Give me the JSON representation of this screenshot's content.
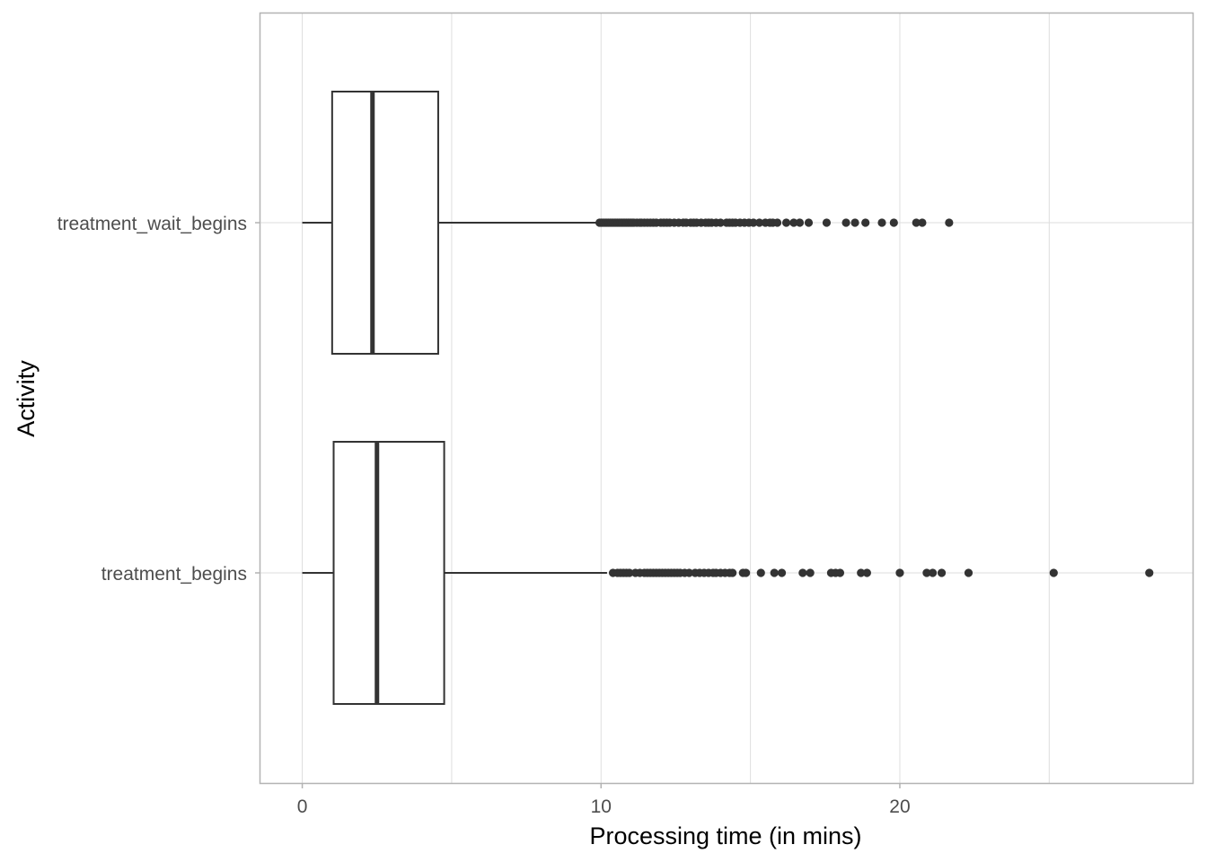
{
  "chart_data": {
    "type": "boxplot",
    "orientation": "horizontal",
    "title": "",
    "xlabel": "Processing time (in mins)",
    "ylabel": "Activity",
    "xlim": [
      -1.4,
      29.8
    ],
    "x_ticks": [
      0,
      10,
      20
    ],
    "x_minor_ticks": [
      5,
      15,
      25
    ],
    "grid": true,
    "colors": {
      "box_stroke": "#333333",
      "outlier": "#333333",
      "grid": "#dedede",
      "panel_border": "#b3b3b3"
    },
    "categories": [
      "treatment_wait_begins",
      "treatment_begins"
    ],
    "series": [
      {
        "category": "treatment_wait_begins",
        "whisker_low": 0,
        "q1": 1.0,
        "median": 2.35,
        "q3": 4.55,
        "whisker_high": 9.9,
        "outliers": [
          9.95,
          10.0,
          10.05,
          10.1,
          10.15,
          10.2,
          10.25,
          10.3,
          10.35,
          10.4,
          10.45,
          10.5,
          10.55,
          10.6,
          10.65,
          10.7,
          10.75,
          10.8,
          10.85,
          10.9,
          10.95,
          11.0,
          11.05,
          11.1,
          11.2,
          11.3,
          11.35,
          11.45,
          11.55,
          11.65,
          11.75,
          11.85,
          12.0,
          12.1,
          12.2,
          12.3,
          12.45,
          12.6,
          12.75,
          12.85,
          13.0,
          13.1,
          13.2,
          13.35,
          13.5,
          13.6,
          13.7,
          13.85,
          14.0,
          14.2,
          14.3,
          14.4,
          14.5,
          14.65,
          14.8,
          14.95,
          15.1,
          15.3,
          15.5,
          15.65,
          15.75,
          15.9,
          16.2,
          16.45,
          16.65,
          16.95,
          17.55,
          18.2,
          18.5,
          18.85,
          19.4,
          19.8,
          20.55,
          20.75,
          21.65
        ]
      },
      {
        "category": "treatment_begins",
        "whisker_low": 0,
        "q1": 1.05,
        "median": 2.5,
        "q3": 4.75,
        "whisker_high": 10.2,
        "outliers": [
          10.4,
          10.55,
          10.65,
          10.75,
          10.85,
          10.95,
          11.15,
          11.3,
          11.45,
          11.55,
          11.65,
          11.75,
          11.85,
          11.95,
          12.05,
          12.15,
          12.25,
          12.35,
          12.45,
          12.55,
          12.65,
          12.8,
          12.95,
          13.15,
          13.3,
          13.45,
          13.6,
          13.75,
          13.85,
          14.0,
          14.15,
          14.3,
          14.4,
          14.75,
          14.85,
          15.35,
          15.8,
          16.05,
          16.75,
          17.0,
          17.7,
          17.85,
          18.0,
          18.7,
          18.9,
          20.0,
          20.9,
          21.1,
          21.4,
          22.3,
          25.15,
          28.35
        ]
      }
    ]
  }
}
